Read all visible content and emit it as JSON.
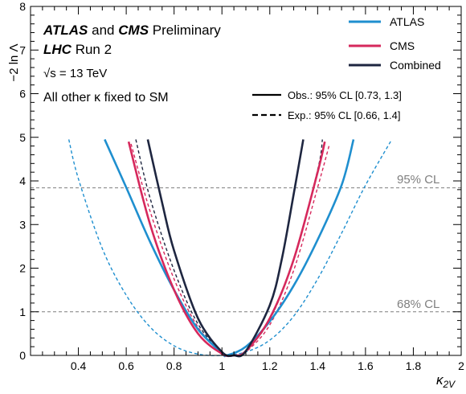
{
  "chart_data": {
    "type": "line",
    "xlabel": "κ",
    "xlabel_subscript": "2V",
    "ylabel": "−2 ln Λ",
    "xlim": [
      0.2,
      2.0
    ],
    "ylim": [
      0,
      8
    ],
    "xticks": [
      "0.4",
      "0.6",
      "0.8",
      "1",
      "1.2",
      "1.4",
      "1.6",
      "1.8",
      "2"
    ],
    "xtick_values": [
      0.4,
      0.6,
      0.8,
      1.0,
      1.2,
      1.4,
      1.6,
      1.8,
      2.0
    ],
    "yticks": [
      "0",
      "1",
      "2",
      "3",
      "4",
      "5",
      "6",
      "7",
      "8"
    ],
    "ytick_values": [
      0,
      1,
      2,
      3,
      4,
      5,
      6,
      7,
      8
    ],
    "grid": false,
    "legend_position": "top-right",
    "annotations": {
      "line1_bold": "ATLAS",
      "line1_mid": "and",
      "line1_bold2": "CMS",
      "line1_end": "Preliminary",
      "line2_bold": "LHC",
      "line2_end": "Run 2",
      "line3": "√s = 13 TeV",
      "line4": "All other κ fixed to SM"
    },
    "legend": [
      {
        "label": "ATLAS",
        "color": "#1f8fcf"
      },
      {
        "label": "CMS",
        "color": "#d6285c"
      },
      {
        "label": "Combined",
        "color": "#1e2640"
      }
    ],
    "style_legend": [
      {
        "style": "solid",
        "label": "Obs.: 95% CL [0.73, 1.3]"
      },
      {
        "style": "dashed",
        "label": "Exp.: 95% CL [0.66, 1.4]"
      }
    ],
    "reference_lines": [
      {
        "y": 3.84,
        "label": "95% CL"
      },
      {
        "y": 1.0,
        "label": "68% CL"
      }
    ],
    "series": [
      {
        "name": "ATLAS",
        "style": "solid",
        "color": "#1f8fcf",
        "x": [
          0.51,
          0.6,
          0.7,
          0.8,
          0.9,
          1.0,
          1.02,
          1.1,
          1.2,
          1.3,
          1.4,
          1.5,
          1.55
        ],
        "y": [
          4.95,
          3.85,
          2.6,
          1.5,
          0.6,
          0.06,
          0.0,
          0.2,
          0.78,
          1.6,
          2.65,
          3.9,
          4.95
        ]
      },
      {
        "name": "CMS",
        "style": "solid",
        "color": "#d6285c",
        "x": [
          0.61,
          0.7,
          0.8,
          0.9,
          1.0,
          1.05,
          1.1,
          1.2,
          1.3,
          1.4,
          1.43
        ],
        "y": [
          4.9,
          3.0,
          1.5,
          0.5,
          0.04,
          0.0,
          0.1,
          0.85,
          2.2,
          4.2,
          4.9
        ]
      },
      {
        "name": "Combined",
        "style": "solid",
        "color": "#1e2640",
        "x": [
          0.69,
          0.75,
          0.8,
          0.9,
          1.0,
          1.05,
          1.1,
          1.2,
          1.25,
          1.3,
          1.34
        ],
        "y": [
          4.95,
          3.5,
          2.4,
          0.85,
          0.08,
          0.0,
          0.1,
          1.15,
          2.2,
          3.7,
          4.95
        ]
      },
      {
        "name": "ATLAS",
        "style": "dashed",
        "color": "#1f8fcf",
        "x": [
          0.36,
          0.4,
          0.5,
          0.6,
          0.7,
          0.8,
          0.9,
          1.0,
          1.1,
          1.2,
          1.3,
          1.4,
          1.5,
          1.6,
          1.71
        ],
        "y": [
          4.95,
          4.05,
          2.45,
          1.38,
          0.65,
          0.22,
          0.03,
          0.0,
          0.08,
          0.35,
          0.9,
          1.75,
          2.8,
          3.9,
          4.95
        ]
      },
      {
        "name": "CMS",
        "style": "dashed",
        "color": "#d6285c",
        "x": [
          0.62,
          0.7,
          0.8,
          0.9,
          1.0,
          1.05,
          1.1,
          1.2,
          1.3,
          1.4,
          1.45
        ],
        "y": [
          4.85,
          3.3,
          1.75,
          0.65,
          0.07,
          0.0,
          0.08,
          0.7,
          1.95,
          3.85,
          4.85
        ]
      },
      {
        "name": "Combined",
        "style": "dashed",
        "color": "#1e2640",
        "x": [
          0.64,
          0.7,
          0.8,
          0.9,
          1.0,
          1.05,
          1.1,
          1.2,
          1.3,
          1.4,
          1.42
        ],
        "y": [
          4.95,
          3.6,
          1.95,
          0.72,
          0.08,
          0.0,
          0.1,
          0.82,
          2.2,
          4.25,
          4.95
        ]
      }
    ]
  }
}
